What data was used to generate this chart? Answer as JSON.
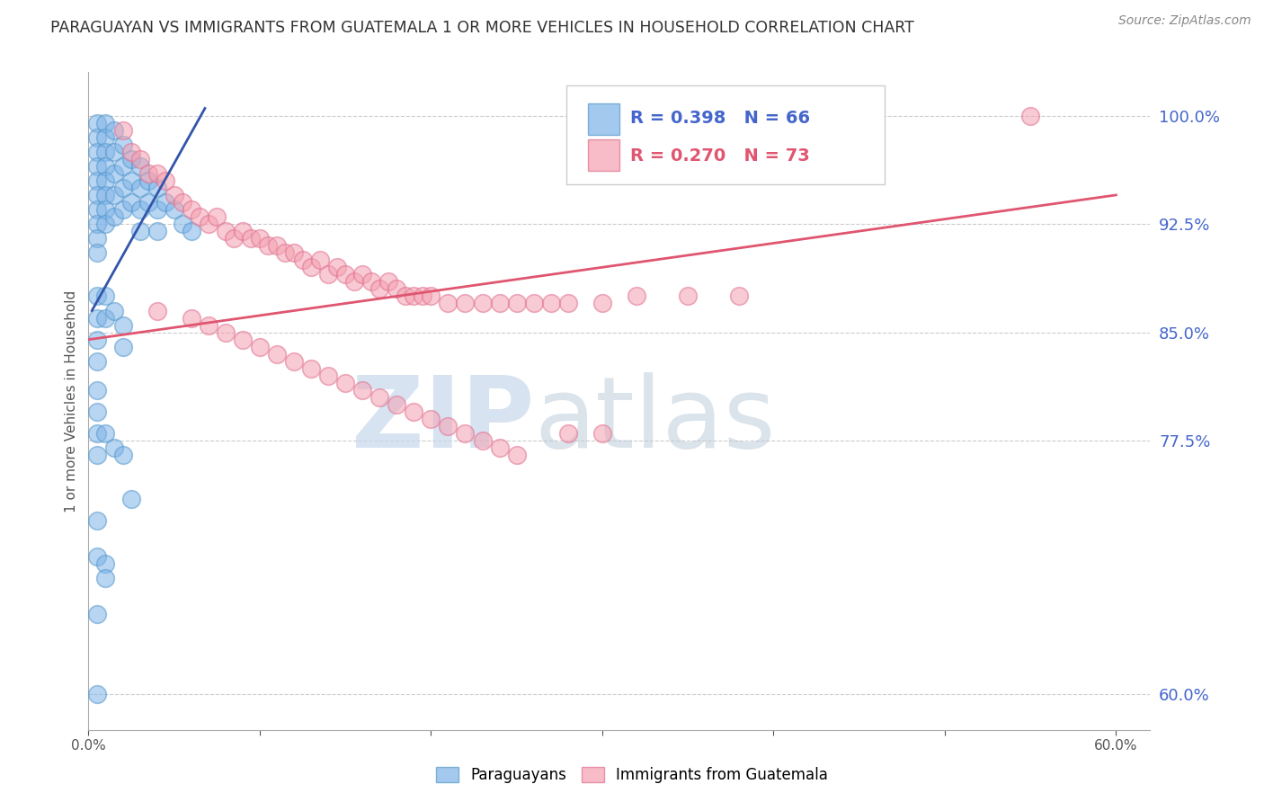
{
  "title": "PARAGUAYAN VS IMMIGRANTS FROM GUATEMALA 1 OR MORE VEHICLES IN HOUSEHOLD CORRELATION CHART",
  "source": "Source: ZipAtlas.com",
  "ylabel_label": "1 or more Vehicles in Household",
  "ytick_labels": [
    "60.0%",
    "77.5%",
    "85.0%",
    "92.5%",
    "100.0%"
  ],
  "ytick_values": [
    0.6,
    0.775,
    0.85,
    0.925,
    1.0
  ],
  "xtick_positions": [
    0.0,
    0.1,
    0.2,
    0.3,
    0.4,
    0.5,
    0.6
  ],
  "xtick_str": [
    "0.0%",
    "",
    "",
    "",
    "",
    "",
    "60.0%"
  ],
  "xlim": [
    0.0,
    0.62
  ],
  "ylim": [
    0.575,
    1.03
  ],
  "blue_R": 0.398,
  "blue_N": 66,
  "pink_R": 0.27,
  "pink_N": 73,
  "blue_color": "#7EB3E8",
  "pink_color": "#F4A0B0",
  "blue_edge_color": "#5599CC",
  "pink_edge_color": "#E07090",
  "blue_line_color": "#3355AA",
  "pink_line_color": "#E05570",
  "legend_label_blue": "Paraguayans",
  "legend_label_pink": "Immigrants from Guatemala",
  "watermark_zip": "ZIP",
  "watermark_atlas": "atlas",
  "grid_color": "#cccccc",
  "ytick_color": "#4466CC",
  "background_color": "#ffffff",
  "blue_scatter_x": [
    0.005,
    0.005,
    0.005,
    0.005,
    0.005,
    0.005,
    0.005,
    0.005,
    0.005,
    0.005,
    0.01,
    0.01,
    0.01,
    0.01,
    0.01,
    0.01,
    0.01,
    0.01,
    0.015,
    0.015,
    0.015,
    0.015,
    0.015,
    0.02,
    0.02,
    0.02,
    0.02,
    0.025,
    0.025,
    0.025,
    0.03,
    0.03,
    0.03,
    0.03,
    0.035,
    0.035,
    0.04,
    0.04,
    0.04,
    0.045,
    0.05,
    0.055,
    0.06,
    0.005,
    0.005,
    0.005,
    0.005,
    0.01,
    0.01,
    0.015,
    0.02,
    0.02,
    0.005,
    0.005,
    0.005,
    0.005,
    0.01,
    0.015,
    0.02,
    0.025,
    0.005,
    0.005,
    0.005,
    0.01,
    0.01,
    0.005
  ],
  "blue_scatter_y": [
    0.995,
    0.985,
    0.975,
    0.965,
    0.955,
    0.945,
    0.935,
    0.925,
    0.915,
    0.905,
    0.995,
    0.985,
    0.975,
    0.965,
    0.955,
    0.945,
    0.935,
    0.925,
    0.99,
    0.975,
    0.96,
    0.945,
    0.93,
    0.98,
    0.965,
    0.95,
    0.935,
    0.97,
    0.955,
    0.94,
    0.965,
    0.95,
    0.935,
    0.92,
    0.955,
    0.94,
    0.95,
    0.935,
    0.92,
    0.94,
    0.935,
    0.925,
    0.92,
    0.875,
    0.86,
    0.845,
    0.83,
    0.875,
    0.86,
    0.865,
    0.855,
    0.84,
    0.81,
    0.795,
    0.78,
    0.765,
    0.78,
    0.77,
    0.765,
    0.735,
    0.72,
    0.695,
    0.655,
    0.69,
    0.68,
    0.6
  ],
  "pink_scatter_x": [
    0.02,
    0.025,
    0.03,
    0.035,
    0.04,
    0.045,
    0.05,
    0.055,
    0.06,
    0.065,
    0.07,
    0.075,
    0.08,
    0.085,
    0.09,
    0.095,
    0.1,
    0.105,
    0.11,
    0.115,
    0.12,
    0.125,
    0.13,
    0.135,
    0.14,
    0.145,
    0.15,
    0.155,
    0.16,
    0.165,
    0.17,
    0.175,
    0.18,
    0.185,
    0.19,
    0.195,
    0.2,
    0.21,
    0.22,
    0.23,
    0.24,
    0.25,
    0.26,
    0.27,
    0.28,
    0.3,
    0.32,
    0.35,
    0.38,
    0.04,
    0.06,
    0.07,
    0.08,
    0.09,
    0.1,
    0.11,
    0.12,
    0.13,
    0.14,
    0.15,
    0.16,
    0.17,
    0.18,
    0.19,
    0.2,
    0.21,
    0.22,
    0.23,
    0.24,
    0.25,
    0.28,
    0.3,
    0.55
  ],
  "pink_scatter_y": [
    0.99,
    0.975,
    0.97,
    0.96,
    0.96,
    0.955,
    0.945,
    0.94,
    0.935,
    0.93,
    0.925,
    0.93,
    0.92,
    0.915,
    0.92,
    0.915,
    0.915,
    0.91,
    0.91,
    0.905,
    0.905,
    0.9,
    0.895,
    0.9,
    0.89,
    0.895,
    0.89,
    0.885,
    0.89,
    0.885,
    0.88,
    0.885,
    0.88,
    0.875,
    0.875,
    0.875,
    0.875,
    0.87,
    0.87,
    0.87,
    0.87,
    0.87,
    0.87,
    0.87,
    0.87,
    0.87,
    0.875,
    0.875,
    0.875,
    0.865,
    0.86,
    0.855,
    0.85,
    0.845,
    0.84,
    0.835,
    0.83,
    0.825,
    0.82,
    0.815,
    0.81,
    0.805,
    0.8,
    0.795,
    0.79,
    0.785,
    0.78,
    0.775,
    0.77,
    0.765,
    0.78,
    0.78,
    1.0
  ],
  "blue_trend_x": [
    0.002,
    0.068
  ],
  "blue_trend_y": [
    0.865,
    1.005
  ],
  "pink_trend_x": [
    0.0,
    0.6
  ],
  "pink_trend_y": [
    0.845,
    0.945
  ]
}
